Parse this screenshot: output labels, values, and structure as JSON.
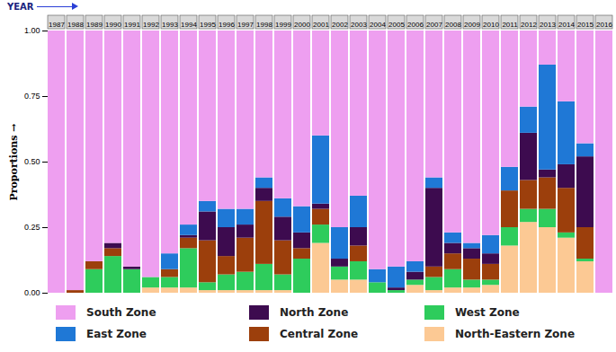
{
  "chart_data": {
    "type": "bar",
    "stacked": true,
    "legend": "bottom",
    "xlabel": "YEAR",
    "ylabel": "Proportions",
    "categories": [
      "1987",
      "1988",
      "1989",
      "1990",
      "1991",
      "1992",
      "1993",
      "1994",
      "1995",
      "1996",
      "1997",
      "1998",
      "1999",
      "2000",
      "2001",
      "2002",
      "2003",
      "2004",
      "2005",
      "2006",
      "2007",
      "2008",
      "2009",
      "2010",
      "2011",
      "2012",
      "2013",
      "2014",
      "2015",
      "2016"
    ],
    "ylim": [
      0,
      1
    ],
    "yticks": [
      {
        "value": 0,
        "label": "0.00"
      },
      {
        "value": 0.25,
        "label": "0.25"
      },
      {
        "value": 0.5,
        "label": "0.50"
      },
      {
        "value": 0.75,
        "label": "0.75"
      },
      {
        "value": 1,
        "label": "1.00"
      }
    ],
    "series": [
      {
        "name": "South Zone",
        "color": "#ee9ff0",
        "values": [
          1,
          0.99,
          0.88,
          0.81,
          0.9,
          0.94,
          0.85,
          0.74,
          0.65,
          0.68,
          0.68,
          0.56,
          0.64,
          0.67,
          0.4,
          0.75,
          0.63,
          0.91,
          0.9,
          0.88,
          0.56,
          0.77,
          0.81,
          0.78,
          0.52,
          0.29,
          0.13,
          0.27,
          0.43,
          1
        ]
      },
      {
        "name": "East Zone",
        "color": "#1f78d6",
        "values": [
          0,
          0,
          0,
          0,
          0,
          0,
          0.06,
          0.04,
          0.04,
          0.07,
          0.06,
          0.04,
          0.07,
          0.1,
          0.26,
          0.12,
          0.12,
          0.05,
          0.08,
          0.04,
          0.04,
          0.04,
          0.02,
          0.07,
          0.09,
          0.1,
          0.4,
          0.24,
          0.05,
          0
        ]
      },
      {
        "name": "North Zone",
        "color": "#3d0b4f",
        "values": [
          0,
          0,
          0,
          0.02,
          0.01,
          0,
          0,
          0.01,
          0.11,
          0.11,
          0.05,
          0.05,
          0.09,
          0.06,
          0.02,
          0.03,
          0.07,
          0,
          0.01,
          0.03,
          0.3,
          0.04,
          0.04,
          0.04,
          0,
          0.18,
          0.03,
          0.09,
          0.27,
          0
        ]
      },
      {
        "name": "Central Zone",
        "color": "#9c3f0c",
        "values": [
          0,
          0.01,
          0.03,
          0.03,
          0,
          0,
          0.03,
          0.04,
          0.16,
          0.07,
          0.13,
          0.24,
          0.13,
          0.04,
          0.06,
          0,
          0.06,
          0,
          0,
          0,
          0.04,
          0.06,
          0.08,
          0.06,
          0.14,
          0.11,
          0.12,
          0.17,
          0.12,
          0
        ]
      },
      {
        "name": "West Zone",
        "color": "#2ecc5c",
        "values": [
          0,
          0,
          0.09,
          0.14,
          0.09,
          0.04,
          0.04,
          0.15,
          0.03,
          0.06,
          0.07,
          0.1,
          0.06,
          0.13,
          0.07,
          0.05,
          0.07,
          0.04,
          0.01,
          0.02,
          0.05,
          0.07,
          0.03,
          0.02,
          0.07,
          0.05,
          0.07,
          0.02,
          0.01,
          0
        ]
      },
      {
        "name": "North-Eastern Zone",
        "color": "#fcc994",
        "values": [
          0,
          0,
          0,
          0,
          0,
          0.02,
          0.02,
          0.02,
          0.01,
          0.01,
          0.01,
          0.01,
          0.01,
          0,
          0.19,
          0.05,
          0.05,
          0,
          0,
          0.03,
          0.01,
          0.02,
          0.02,
          0.03,
          0.18,
          0.27,
          0.25,
          0.21,
          0.12,
          0
        ]
      }
    ]
  }
}
